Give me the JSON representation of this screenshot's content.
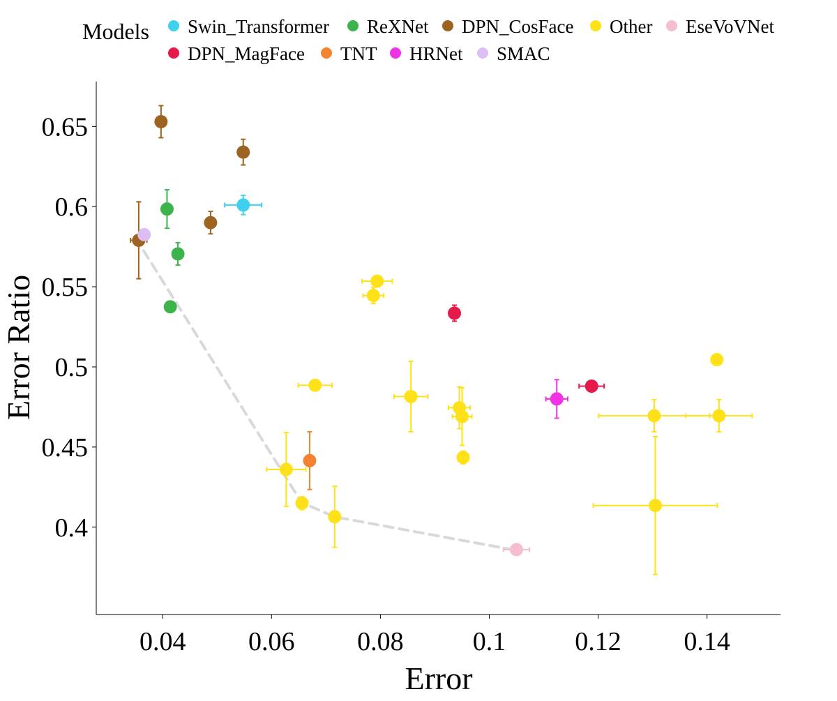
{
  "chart_data": {
    "type": "scatter",
    "title": "",
    "xlabel": "Error",
    "ylabel": "Error Ratio",
    "xlim": [
      0.0278,
      0.1535
    ],
    "ylim": [
      0.3455,
      0.678
    ],
    "x_ticks": [
      {
        "value": 0.04,
        "label": "0.04"
      },
      {
        "value": 0.06,
        "label": "0.06"
      },
      {
        "value": 0.08,
        "label": "0.08"
      },
      {
        "value": 0.1,
        "label": "0.1"
      },
      {
        "value": 0.12,
        "label": "0.12"
      },
      {
        "value": 0.14,
        "label": "0.14"
      }
    ],
    "y_ticks": [
      {
        "value": 0.4,
        "label": "0.4"
      },
      {
        "value": 0.45,
        "label": "0.45"
      },
      {
        "value": 0.5,
        "label": "0.5"
      },
      {
        "value": 0.55,
        "label": "0.55"
      },
      {
        "value": 0.6,
        "label": "0.6"
      },
      {
        "value": 0.65,
        "label": "0.65"
      }
    ],
    "grid": false,
    "legend": {
      "title": "Models",
      "placement": "top",
      "items": [
        {
          "name": "Swin_Transformer",
          "color": "#3fd0f0"
        },
        {
          "name": "ReXNet",
          "color": "#3cb44b"
        },
        {
          "name": "DPN_CosFace",
          "color": "#9c6321"
        },
        {
          "name": "Other",
          "color": "#ffe119"
        },
        {
          "name": "EseVoVNet",
          "color": "#f5bdd0"
        },
        {
          "name": "DPN_MagFace",
          "color": "#e6194b"
        },
        {
          "name": "TNT",
          "color": "#f58231"
        },
        {
          "name": "HRNet",
          "color": "#f032e6"
        },
        {
          "name": "SMAC",
          "color": "#dcbef5"
        }
      ]
    },
    "pareto_front": {
      "color": "#d9d9d9",
      "style": "dashed",
      "points": [
        {
          "x": 0.0365,
          "y": 0.5725
        },
        {
          "x": 0.0655,
          "y": 0.4155
        },
        {
          "x": 0.0715,
          "y": 0.4065
        },
        {
          "x": 0.105,
          "y": 0.3855
        }
      ]
    },
    "series": [
      {
        "name": "DPN_CosFace",
        "color": "#9c6321",
        "points": [
          {
            "x": 0.0397,
            "y": 0.653,
            "x_err": 0,
            "y_err": 0.01
          },
          {
            "x": 0.0548,
            "y": 0.634,
            "x_err": 0,
            "y_err": 0.008
          },
          {
            "x": 0.0488,
            "y": 0.59,
            "x_err": 0,
            "y_err": 0.007
          },
          {
            "x": 0.0356,
            "y": 0.579,
            "x_err": 0.0015,
            "y_err": 0.024
          }
        ]
      },
      {
        "name": "Swin_Transformer",
        "color": "#3fd0f0",
        "points": [
          {
            "x": 0.0548,
            "y": 0.601,
            "x_err": 0.0034,
            "y_err": 0.006
          }
        ]
      },
      {
        "name": "ReXNet",
        "color": "#3cb44b",
        "points": [
          {
            "x": 0.0408,
            "y": 0.5985,
            "x_err": 0,
            "y_err": 0.012
          },
          {
            "x": 0.0428,
            "y": 0.5705,
            "x_err": 0,
            "y_err": 0.007
          },
          {
            "x": 0.0414,
            "y": 0.5375,
            "x_err": 0,
            "y_err": 0
          }
        ]
      },
      {
        "name": "SMAC",
        "color": "#dcbef5",
        "points": [
          {
            "x": 0.0366,
            "y": 0.5825,
            "x_err": 0,
            "y_err": 0
          }
        ]
      },
      {
        "name": "Other",
        "color": "#ffe119",
        "points": [
          {
            "x": 0.0794,
            "y": 0.5535,
            "x_err": 0.0028,
            "y_err": 0
          },
          {
            "x": 0.0787,
            "y": 0.5445,
            "x_err": 0.0019,
            "y_err": 0.005
          },
          {
            "x": 0.068,
            "y": 0.4885,
            "x_err": 0.0031,
            "y_err": 0
          },
          {
            "x": 0.0856,
            "y": 0.4815,
            "x_err": 0.0031,
            "y_err": 0.022
          },
          {
            "x": 0.0945,
            "y": 0.4745,
            "x_err": 0.002,
            "y_err": 0.013
          },
          {
            "x": 0.095,
            "y": 0.469,
            "x_err": 0.0018,
            "y_err": 0.018
          },
          {
            "x": 0.0952,
            "y": 0.4435,
            "x_err": 0,
            "y_err": 0.004
          },
          {
            "x": 0.0627,
            "y": 0.436,
            "x_err": 0.0036,
            "y_err": 0.023
          },
          {
            "x": 0.0656,
            "y": 0.415,
            "x_err": 0.0008,
            "y_err": 0.004
          },
          {
            "x": 0.0716,
            "y": 0.4065,
            "x_err": 0,
            "y_err": 0.019
          },
          {
            "x": 0.1303,
            "y": 0.4695,
            "x_err": 0.0102,
            "y_err": 0.01
          },
          {
            "x": 0.1422,
            "y": 0.4695,
            "x_err": 0.0061,
            "y_err": 0.01
          },
          {
            "x": 0.1418,
            "y": 0.5045,
            "x_err": 0,
            "y_err": 0
          },
          {
            "x": 0.1305,
            "y": 0.4135,
            "x_err": 0.0114,
            "y_err": 0.043
          }
        ]
      },
      {
        "name": "TNT",
        "color": "#f58231",
        "points": [
          {
            "x": 0.067,
            "y": 0.4415,
            "x_err": 0,
            "y_err": 0.018
          }
        ]
      },
      {
        "name": "DPN_MagFace",
        "color": "#e6194b",
        "points": [
          {
            "x": 0.0936,
            "y": 0.5335,
            "x_err": 0,
            "y_err": 0.005
          },
          {
            "x": 0.1188,
            "y": 0.488,
            "x_err": 0.0023,
            "y_err": 0
          }
        ]
      },
      {
        "name": "HRNet",
        "color": "#f032e6",
        "points": [
          {
            "x": 0.1124,
            "y": 0.48,
            "x_err": 0.002,
            "y_err": 0.012
          }
        ]
      },
      {
        "name": "EseVoVNet",
        "color": "#f5bdd0",
        "points": [
          {
            "x": 0.105,
            "y": 0.386,
            "x_err": 0.0024,
            "y_err": 0
          }
        ]
      }
    ]
  }
}
